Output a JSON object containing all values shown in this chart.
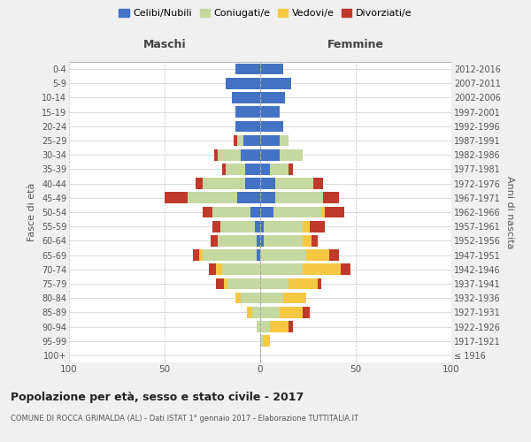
{
  "age_groups": [
    "100+",
    "95-99",
    "90-94",
    "85-89",
    "80-84",
    "75-79",
    "70-74",
    "65-69",
    "60-64",
    "55-59",
    "50-54",
    "45-49",
    "40-44",
    "35-39",
    "30-34",
    "25-29",
    "20-24",
    "15-19",
    "10-14",
    "5-9",
    "0-4"
  ],
  "birth_years": [
    "≤ 1916",
    "1917-1921",
    "1922-1926",
    "1927-1931",
    "1932-1936",
    "1937-1941",
    "1942-1946",
    "1947-1951",
    "1952-1956",
    "1957-1961",
    "1962-1966",
    "1967-1971",
    "1972-1976",
    "1977-1981",
    "1982-1986",
    "1987-1991",
    "1992-1996",
    "1997-2001",
    "2002-2006",
    "2007-2011",
    "2012-2016"
  ],
  "males": {
    "celibi": [
      0,
      0,
      0,
      0,
      0,
      0,
      0,
      2,
      2,
      3,
      5,
      12,
      8,
      8,
      10,
      9,
      13,
      13,
      15,
      18,
      13
    ],
    "coniugati": [
      0,
      0,
      2,
      4,
      10,
      17,
      20,
      28,
      20,
      18,
      20,
      26,
      22,
      10,
      12,
      3,
      0,
      0,
      0,
      0,
      0
    ],
    "vedovi": [
      0,
      0,
      0,
      3,
      3,
      2,
      3,
      2,
      0,
      0,
      0,
      0,
      0,
      0,
      0,
      0,
      0,
      0,
      0,
      0,
      0
    ],
    "divorziati": [
      0,
      0,
      0,
      0,
      0,
      4,
      4,
      3,
      4,
      4,
      5,
      12,
      4,
      2,
      2,
      2,
      0,
      0,
      0,
      0,
      0
    ]
  },
  "females": {
    "nubili": [
      0,
      0,
      0,
      0,
      0,
      0,
      0,
      0,
      2,
      2,
      7,
      8,
      8,
      5,
      10,
      10,
      12,
      10,
      13,
      16,
      12
    ],
    "coniugate": [
      0,
      2,
      5,
      10,
      12,
      15,
      22,
      24,
      20,
      20,
      25,
      25,
      20,
      10,
      12,
      5,
      0,
      0,
      0,
      0,
      0
    ],
    "vedove": [
      0,
      3,
      10,
      12,
      12,
      15,
      20,
      12,
      5,
      4,
      2,
      0,
      0,
      0,
      0,
      0,
      0,
      0,
      0,
      0,
      0
    ],
    "divorziate": [
      0,
      0,
      2,
      4,
      0,
      2,
      5,
      5,
      3,
      8,
      10,
      8,
      5,
      2,
      0,
      0,
      0,
      0,
      0,
      0,
      0
    ]
  },
  "colors": {
    "celibi_nubili": "#4472c4",
    "coniugati": "#c5d8a0",
    "vedovi": "#f5c842",
    "divorziati": "#c0392b"
  },
  "title": "Popolazione per età, sesso e stato civile - 2017",
  "subtitle": "COMUNE DI ROCCA GRIMALDA (AL) - Dati ISTAT 1° gennaio 2017 - Elaborazione TUTTITALIA.IT",
  "xlabel_left": "Maschi",
  "xlabel_right": "Femmine",
  "ylabel_left": "Fasce di età",
  "ylabel_right": "Anni di nascita",
  "xlim": 100,
  "bg_color": "#f0f0f0",
  "plot_bg_color": "#ffffff"
}
